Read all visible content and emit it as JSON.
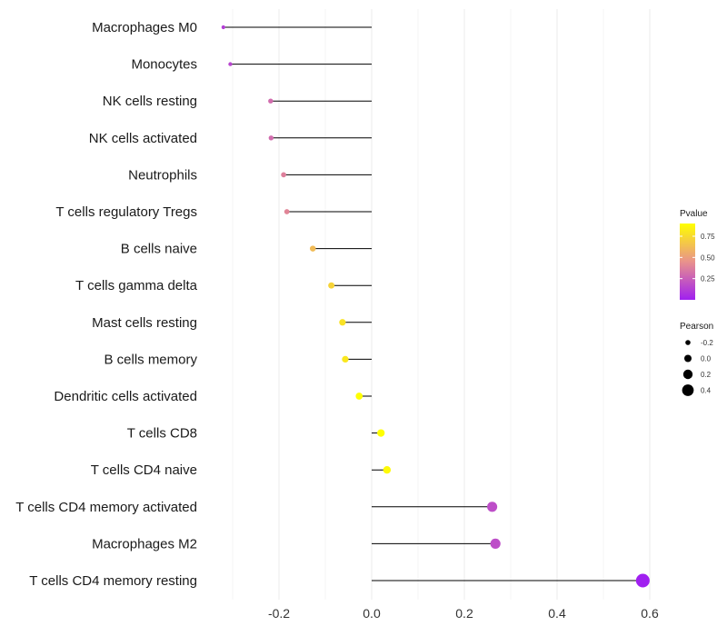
{
  "chart_data": {
    "type": "lollipop",
    "title": "",
    "xlabel": "",
    "ylabel": "",
    "xlim": [
      -0.33,
      0.6
    ],
    "xticks": [
      -0.2,
      0.0,
      0.2,
      0.4,
      0.6
    ],
    "xtick_labels": [
      "-0.2",
      "0.0",
      "0.2",
      "0.4",
      "0.6"
    ],
    "grid": true,
    "categories": [
      "Macrophages M0",
      "Monocytes",
      "NK cells resting",
      "NK cells activated",
      "Neutrophils",
      "T cells regulatory  Tregs",
      "B cells naive",
      "T cells gamma delta",
      "Mast cells resting",
      "B cells memory",
      "Dendritic cells activated",
      "T cells CD8",
      "T cells CD4 naive",
      "T cells CD4 memory activated",
      "Macrophages M2",
      "T cells CD4 memory resting"
    ],
    "pearson": [
      -0.32,
      -0.305,
      -0.218,
      -0.217,
      -0.19,
      -0.183,
      -0.127,
      -0.087,
      -0.063,
      -0.057,
      -0.027,
      0.02,
      0.033,
      0.26,
      0.267,
      0.585
    ],
    "pvalue": [
      0.12,
      0.15,
      0.3,
      0.3,
      0.38,
      0.4,
      0.62,
      0.72,
      0.78,
      0.8,
      0.9,
      0.93,
      0.88,
      0.18,
      0.18,
      0.0
    ],
    "legend": {
      "color_title": "Pvalue",
      "color_range": [
        0.0,
        0.9
      ],
      "color_low": "#a020f0",
      "color_mid": "#e9928c",
      "color_high": "#ffff00",
      "color_ticks": [
        0.25,
        0.5,
        0.75
      ],
      "color_tick_labels": [
        "0.25",
        "0.50",
        "0.75"
      ],
      "size_title": "Pearson",
      "size_values": [
        -0.2,
        0.0,
        0.2,
        0.4
      ],
      "size_labels": [
        "-0.2",
        "0.0",
        "0.2",
        "0.4"
      ],
      "placement": "right"
    }
  }
}
